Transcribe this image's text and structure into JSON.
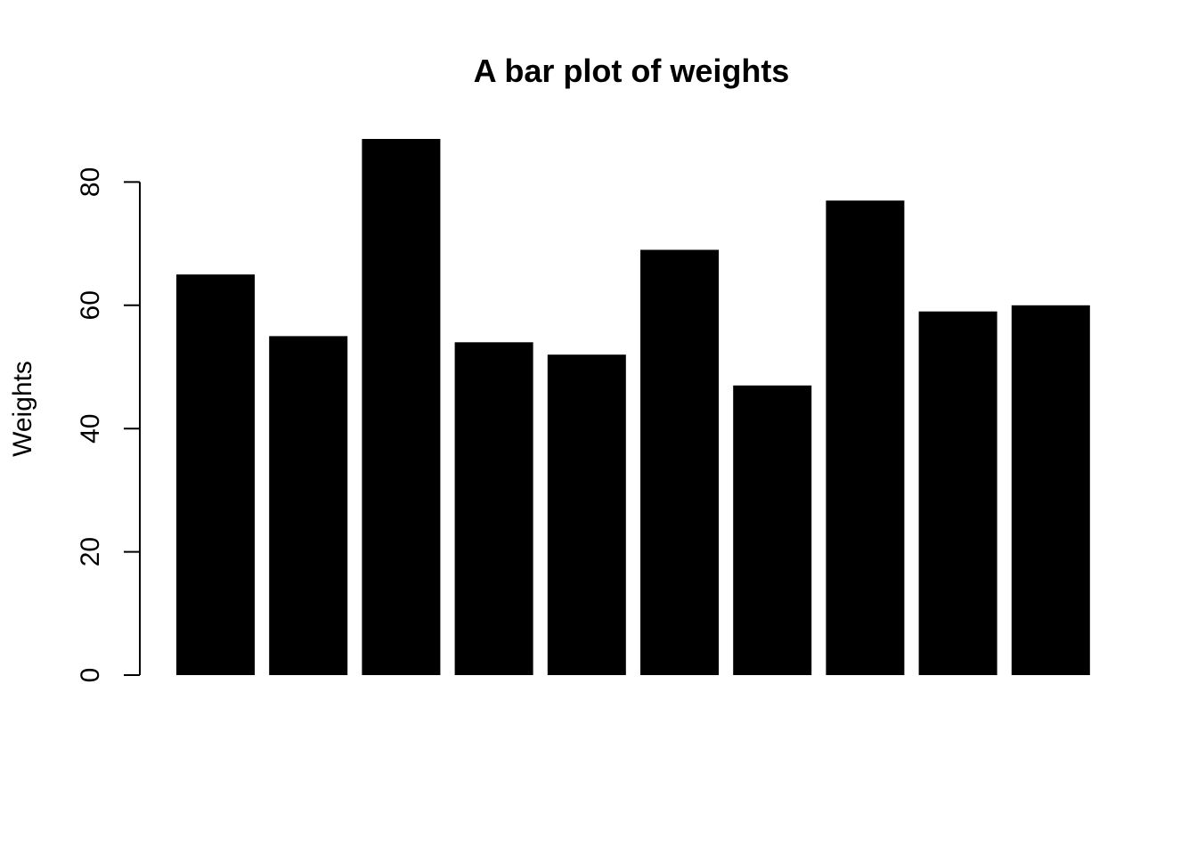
{
  "chart_data": {
    "type": "bar",
    "title": "A bar plot of weights",
    "xlabel": "",
    "ylabel": "Weights",
    "ylim": [
      0,
      87
    ],
    "yticks": [
      0,
      20,
      40,
      60,
      80
    ],
    "values": [
      65,
      55,
      87,
      54,
      52,
      69,
      47,
      77,
      59,
      60
    ],
    "bar_color": "#000000",
    "grid": false,
    "legend": "none"
  }
}
